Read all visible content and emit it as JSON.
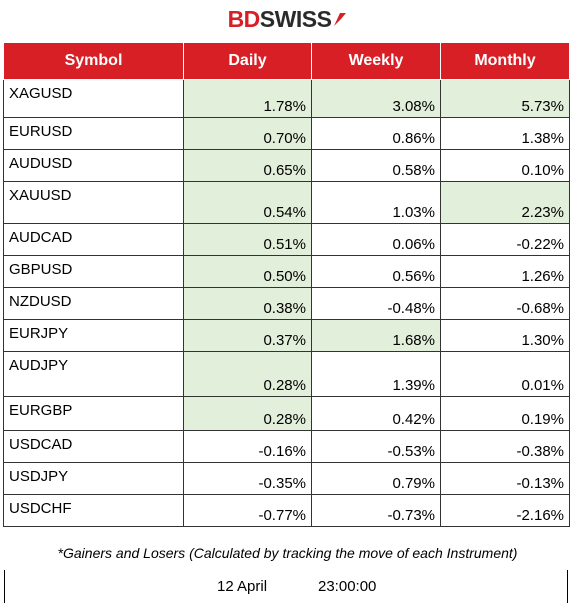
{
  "brand": {
    "name_part1": "BD",
    "name_part2": "SWISS",
    "logo_icon": "arrow-flag-icon",
    "color_red": "#d81f26",
    "color_dark": "#2a2a2a"
  },
  "table": {
    "headers": [
      "Symbol",
      "Daily",
      "Weekly",
      "Monthly"
    ],
    "header_color": "#d81f26",
    "highlight_color": "#e2efda",
    "rows": [
      {
        "symbol": "XAGUSD",
        "daily": "1.78%",
        "weekly": "3.08%",
        "monthly": "5.73%",
        "hl": [
          true,
          true,
          true
        ]
      },
      {
        "symbol": "EURUSD",
        "daily": "0.70%",
        "weekly": "0.86%",
        "monthly": "1.38%",
        "hl": [
          true,
          false,
          false
        ]
      },
      {
        "symbol": "AUDUSD",
        "daily": "0.65%",
        "weekly": "0.58%",
        "monthly": "0.10%",
        "hl": [
          true,
          false,
          false
        ]
      },
      {
        "symbol": "XAUUSD",
        "daily": "0.54%",
        "weekly": "1.03%",
        "monthly": "2.23%",
        "hl": [
          true,
          false,
          true
        ]
      },
      {
        "symbol": "AUDCAD",
        "daily": "0.51%",
        "weekly": "0.06%",
        "monthly": "-0.22%",
        "hl": [
          true,
          false,
          false
        ]
      },
      {
        "symbol": "GBPUSD",
        "daily": "0.50%",
        "weekly": "0.56%",
        "monthly": "1.26%",
        "hl": [
          true,
          false,
          false
        ]
      },
      {
        "symbol": "NZDUSD",
        "daily": "0.38%",
        "weekly": "-0.48%",
        "monthly": "-0.68%",
        "hl": [
          true,
          false,
          false
        ]
      },
      {
        "symbol": "EURJPY",
        "daily": "0.37%",
        "weekly": "1.68%",
        "monthly": "1.30%",
        "hl": [
          true,
          true,
          false
        ]
      },
      {
        "symbol": "AUDJPY",
        "daily": "0.28%",
        "weekly": "1.39%",
        "monthly": "0.01%",
        "hl": [
          true,
          false,
          false
        ]
      },
      {
        "symbol": "EURGBP",
        "daily": "0.28%",
        "weekly": "0.42%",
        "monthly": "0.19%",
        "hl": [
          true,
          false,
          false
        ]
      },
      {
        "symbol": "USDCAD",
        "daily": "-0.16%",
        "weekly": "-0.53%",
        "monthly": "-0.38%",
        "hl": [
          false,
          false,
          false
        ]
      },
      {
        "symbol": "USDJPY",
        "daily": "-0.35%",
        "weekly": "0.79%",
        "monthly": "-0.13%",
        "hl": [
          false,
          false,
          false
        ]
      },
      {
        "symbol": "USDCHF",
        "daily": "-0.77%",
        "weekly": "-0.73%",
        "monthly": "-2.16%",
        "hl": [
          false,
          false,
          false
        ]
      }
    ]
  },
  "footer": {
    "note": "*Gainers and Losers (Calculated by tracking the move of each Instrument)",
    "date": "12 April",
    "time": "23:00:00"
  }
}
